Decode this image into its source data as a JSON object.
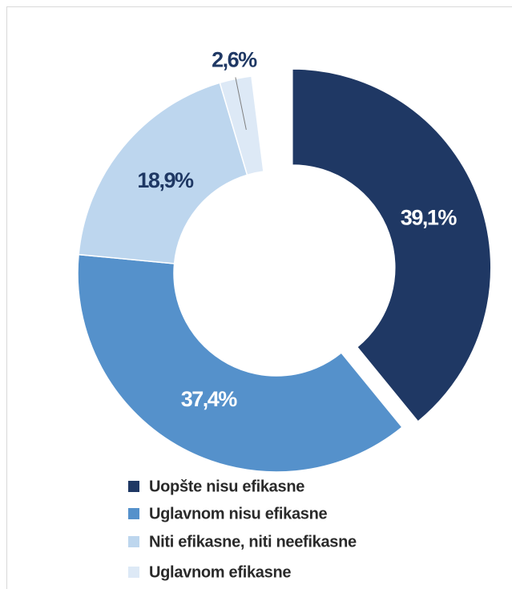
{
  "chart_data": {
    "type": "pie",
    "categories": [
      "Uopšte nisu efikasne",
      "Uglavnom nisu efikasne",
      "Niti efikasne, niti neefikasne",
      "Uglavnom efikasne"
    ],
    "values": [
      39.1,
      37.4,
      18.9,
      2.6
    ],
    "value_labels": [
      "39,1%",
      "37,4%",
      "18,9%",
      "2,6%"
    ],
    "colors": [
      "#1f3864",
      "#5591cb",
      "#bdd6ee",
      "#dde9f6"
    ],
    "legend": "bottom"
  }
}
